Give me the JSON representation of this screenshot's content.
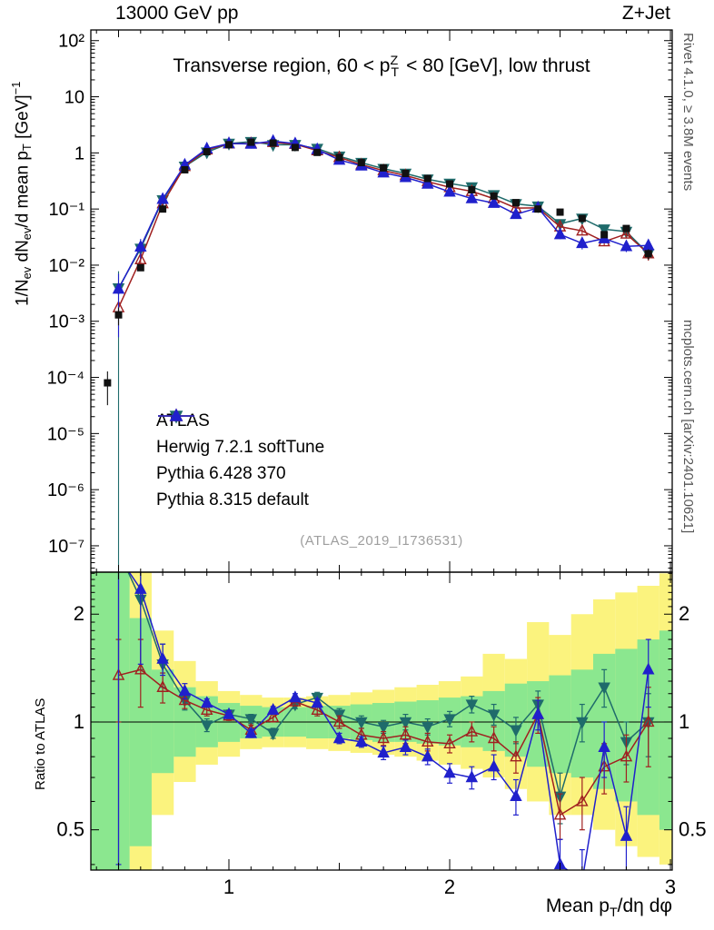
{
  "header": {
    "left": "13000 GeV pp",
    "right": "Z+Jet"
  },
  "notes": {
    "right_top": "Rivet 4.1.0, ≥ 3.8M events",
    "right_bottom": "mcplots.cern.ch [arXiv:2401.10621]",
    "watermark": "(ATLAS_2019_I1736531)"
  },
  "legend": [
    {
      "label": "ATLAS",
      "marker": "square",
      "color": "#111111",
      "filled": true,
      "line": false
    },
    {
      "label": "Herwig 7.2.1 softTune",
      "marker": "triangle-down",
      "color": "#1f6b6b",
      "filled": true,
      "line": true
    },
    {
      "label": "Pythia 6.428 370",
      "marker": "triangle-up",
      "color": "#a02020",
      "filled": false,
      "line": true
    },
    {
      "label": "Pythia 8.315 default",
      "marker": "triangle-up",
      "color": "#2020cc",
      "filled": true,
      "line": true
    }
  ],
  "chart_data": {
    "type": "line",
    "title": "Transverse region, 60 < p^{Z}_{T} < 80 [GeV], low thrust",
    "ylabel_main": "1/N_{ev} dN_{ev}/d mean p_{T} [GeV]^{−1}",
    "ylabel_ratio": "Ratio to ATLAS",
    "xlabel": "Mean p_{T}/dη dφ",
    "xlim": [
      0.3745,
      3.008
    ],
    "main_ylog_range": [
      -7.47,
      2.19
    ],
    "ratio_range": [
      0.386,
      2.62
    ],
    "xticks": {
      "values": [
        1,
        2,
        3
      ],
      "labels": [
        "1",
        "2",
        "3"
      ]
    },
    "yticks_main": {
      "decades": [
        2,
        1,
        0,
        -1,
        -2,
        -3,
        -4,
        -5,
        -6,
        -7
      ],
      "labels": [
        "10²",
        "10",
        "1",
        "10⁻¹",
        "10⁻²",
        "10⁻³",
        "10⁻⁴",
        "10⁻⁵",
        "10⁻⁶",
        "10⁻⁷"
      ]
    },
    "yticks_ratio": {
      "values": [
        2,
        1,
        0.5
      ],
      "labels": [
        "2",
        "1",
        "0.5"
      ]
    },
    "band_colors": {
      "inner": "#8be78f",
      "outer": "#fbf37e"
    },
    "atlas": {
      "name": "ATLAS",
      "color": "#111111",
      "marker": "square",
      "x": [
        0.45,
        0.5,
        0.6,
        0.7,
        0.8,
        0.9,
        1.0,
        1.1,
        1.2,
        1.3,
        1.4,
        1.5,
        1.6,
        1.7,
        1.8,
        1.9,
        2.0,
        2.1,
        2.2,
        2.3,
        2.4,
        2.5,
        2.6,
        2.7,
        2.8,
        2.9
      ],
      "y": [
        8e-05,
        0.0013,
        0.009,
        0.1,
        0.5,
        1.05,
        1.4,
        1.55,
        1.5,
        1.25,
        1.02,
        0.83,
        0.67,
        0.54,
        0.43,
        0.35,
        0.28,
        0.22,
        0.17,
        0.13,
        0.1,
        0.088,
        0.068,
        0.035,
        0.045,
        0.016
      ],
      "rel_err": [
        0.6,
        0.35,
        0.12,
        0.06,
        0.04,
        0.03,
        0.03,
        0.03,
        0.03,
        0.03,
        0.03,
        0.035,
        0.04,
        0.04,
        0.045,
        0.05,
        0.05,
        0.055,
        0.06,
        0.07,
        0.08,
        0.09,
        0.1,
        0.12,
        0.12,
        0.2
      ]
    },
    "series": [
      {
        "name": "Herwig 7.2.1 softTune",
        "color": "#1f6b6b",
        "marker": "triangle-down",
        "filled": true,
        "x": [
          0.5,
          0.6,
          0.7,
          0.8,
          0.9,
          1.0,
          1.1,
          1.2,
          1.3,
          1.4,
          1.5,
          1.6,
          1.7,
          1.8,
          1.9,
          2.0,
          2.1,
          2.2,
          2.3,
          2.4,
          2.5,
          2.6,
          2.7,
          2.8,
          2.9
        ],
        "ratio": [
          3.0,
          2.2,
          1.45,
          1.15,
          0.98,
          1.05,
          1.02,
          0.93,
          1.12,
          1.17,
          1.05,
          1.0,
          0.97,
          1.0,
          0.97,
          1.02,
          1.12,
          1.05,
          0.95,
          1.12,
          0.62,
          1.0,
          1.25,
          0.88,
          1.0
        ],
        "ratio_err": [
          3.0,
          0.8,
          0.2,
          0.07,
          0.04,
          0.03,
          0.03,
          0.03,
          0.03,
          0.04,
          0.04,
          0.04,
          0.04,
          0.05,
          0.05,
          0.05,
          0.06,
          0.07,
          0.08,
          0.1,
          0.1,
          0.12,
          0.15,
          0.12,
          0.2
        ]
      },
      {
        "name": "Pythia 6.428 370",
        "color": "#a02020",
        "marker": "triangle-up",
        "filled": false,
        "x": [
          0.5,
          0.6,
          0.7,
          0.8,
          0.9,
          1.0,
          1.1,
          1.2,
          1.3,
          1.4,
          1.5,
          1.6,
          1.7,
          1.8,
          1.9,
          2.0,
          2.1,
          2.2,
          2.3,
          2.4,
          2.5,
          2.6,
          2.7,
          2.8,
          2.9
        ],
        "ratio": [
          1.35,
          1.4,
          1.25,
          1.15,
          1.08,
          1.04,
          0.95,
          1.03,
          1.14,
          1.08,
          1.0,
          0.92,
          0.9,
          0.92,
          0.88,
          0.87,
          0.94,
          0.9,
          0.8,
          1.05,
          0.55,
          0.6,
          0.75,
          0.8,
          1.0
        ],
        "ratio_err": [
          0.35,
          0.3,
          0.12,
          0.06,
          0.04,
          0.03,
          0.03,
          0.03,
          0.03,
          0.04,
          0.04,
          0.04,
          0.04,
          0.05,
          0.05,
          0.05,
          0.06,
          0.07,
          0.08,
          0.12,
          0.08,
          0.1,
          0.12,
          0.12,
          0.25
        ]
      },
      {
        "name": "Pythia 8.315 default",
        "color": "#2020cc",
        "marker": "triangle-up",
        "filled": true,
        "x": [
          0.5,
          0.6,
          0.7,
          0.8,
          0.9,
          1.0,
          1.1,
          1.2,
          1.3,
          1.4,
          1.5,
          1.6,
          1.7,
          1.8,
          1.9,
          2.0,
          2.1,
          2.2,
          2.3,
          2.4,
          2.5,
          2.6,
          2.7,
          2.8,
          2.9
        ],
        "ratio": [
          2.9,
          2.35,
          1.5,
          1.22,
          1.13,
          1.05,
          0.93,
          1.08,
          1.17,
          1.13,
          0.9,
          0.88,
          0.82,
          0.85,
          0.8,
          0.72,
          0.7,
          0.75,
          0.62,
          1.05,
          0.4,
          0.36,
          0.85,
          0.48,
          1.4
        ],
        "ratio_err": [
          2.5,
          0.9,
          0.15,
          0.06,
          0.03,
          0.025,
          0.025,
          0.025,
          0.03,
          0.03,
          0.03,
          0.03,
          0.035,
          0.04,
          0.04,
          0.045,
          0.05,
          0.06,
          0.07,
          0.1,
          0.07,
          0.08,
          0.15,
          0.1,
          0.3
        ]
      }
    ],
    "bands": [
      [
        0.375,
        0.55,
        0.3,
        2.7,
        0.3,
        2.7
      ],
      [
        0.55,
        0.65,
        0.45,
        1.95,
        0.3,
        2.7
      ],
      [
        0.65,
        0.75,
        0.72,
        1.4,
        0.55,
        1.8
      ],
      [
        0.75,
        0.85,
        0.8,
        1.25,
        0.68,
        1.48
      ],
      [
        0.85,
        0.95,
        0.85,
        1.18,
        0.76,
        1.3
      ],
      [
        0.95,
        1.05,
        0.88,
        1.13,
        0.8,
        1.22
      ],
      [
        1.05,
        1.15,
        0.9,
        1.11,
        0.84,
        1.19
      ],
      [
        1.15,
        1.25,
        0.91,
        1.1,
        0.85,
        1.17
      ],
      [
        1.25,
        1.35,
        0.91,
        1.1,
        0.85,
        1.17
      ],
      [
        1.35,
        1.45,
        0.9,
        1.11,
        0.84,
        1.18
      ],
      [
        1.45,
        1.55,
        0.9,
        1.11,
        0.83,
        1.19
      ],
      [
        1.55,
        1.65,
        0.89,
        1.12,
        0.82,
        1.21
      ],
      [
        1.65,
        1.75,
        0.88,
        1.13,
        0.81,
        1.23
      ],
      [
        1.75,
        1.85,
        0.88,
        1.14,
        0.8,
        1.25
      ],
      [
        1.85,
        1.95,
        0.87,
        1.15,
        0.78,
        1.27
      ],
      [
        1.95,
        2.05,
        0.86,
        1.17,
        0.76,
        1.3
      ],
      [
        2.05,
        2.15,
        0.85,
        1.18,
        0.74,
        1.34
      ],
      [
        2.15,
        2.25,
        0.83,
        1.22,
        0.7,
        1.55
      ],
      [
        2.25,
        2.35,
        0.8,
        1.28,
        0.65,
        1.5
      ],
      [
        2.35,
        2.45,
        0.75,
        1.3,
        0.6,
        1.9
      ],
      [
        2.45,
        2.55,
        0.72,
        1.35,
        0.55,
        1.75
      ],
      [
        2.55,
        2.65,
        0.7,
        1.4,
        0.55,
        2.0
      ],
      [
        2.65,
        2.75,
        0.65,
        1.55,
        0.5,
        2.2
      ],
      [
        2.75,
        2.85,
        0.6,
        1.6,
        0.45,
        2.3
      ],
      [
        2.85,
        2.95,
        0.55,
        1.7,
        0.42,
        2.4
      ],
      [
        2.95,
        3.008,
        0.5,
        1.8,
        0.4,
        2.6
      ]
    ]
  }
}
